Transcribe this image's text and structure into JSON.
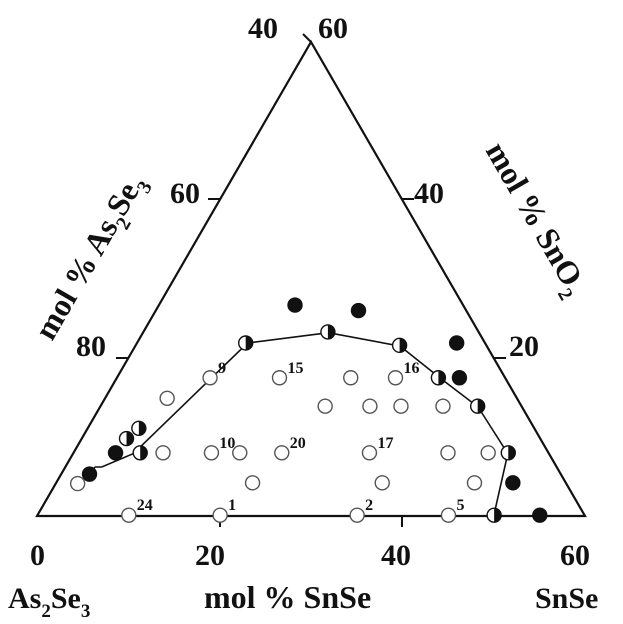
{
  "figure": {
    "corner_left": {
      "main": "As",
      "sub1": "2",
      "mid": "Se",
      "sub2": "3"
    },
    "corner_right": "SnSe",
    "bottom_title": "mol % SnSe",
    "left_title": {
      "main": "mol % As",
      "sub1": "2",
      "mid": "Se",
      "sub2": "3"
    },
    "right_title": {
      "main": "mol % SnO",
      "sub1": "2"
    },
    "bottom_ticks": [
      "0",
      "20",
      "40",
      "60"
    ],
    "left_ticks": [
      "60",
      "80"
    ],
    "right_ticks": [
      "40",
      "20"
    ],
    "apex_left": "40",
    "apex_right": "60",
    "point_labels": [
      "9",
      "15",
      "16",
      "10",
      "20",
      "17",
      "24",
      "1",
      "2",
      "5"
    ]
  },
  "chart_data": {
    "type": "scatter",
    "coordinate_system": "ternary (mol % SnSe along base, mol % SnO2 as height; base range 0-60, apex at SnO2 = 60)",
    "ranges": {
      "SnSe": [
        0,
        60
      ],
      "SnO2": [
        0,
        60
      ],
      "As2Se3": [
        40,
        100
      ]
    },
    "legend_note": "marker fill: filled, half-filled, open",
    "boundary_line": [
      [
        50,
        0
      ],
      [
        47.6,
        7.9
      ],
      [
        41.4,
        13.8
      ],
      [
        35.5,
        17.4
      ],
      [
        29,
        21.5
      ],
      [
        20.3,
        23.2
      ],
      [
        12.1,
        21.9
      ],
      [
        6.6,
        7.9
      ],
      [
        4,
        6.2
      ],
      [
        3.3,
        6.2
      ],
      [
        2.5,
        5.2
      ]
    ],
    "points": [
      {
        "snse": 14.9,
        "sno2": 26.7,
        "type": "filled"
      },
      {
        "snse": 22.2,
        "sno2": 26.0,
        "type": "filled"
      },
      {
        "snse": 11.9,
        "sno2": 21.9,
        "type": "half"
      },
      {
        "snse": 20.2,
        "sno2": 23.3,
        "type": "half"
      },
      {
        "snse": 28.9,
        "sno2": 21.6,
        "type": "half"
      },
      {
        "snse": 35.0,
        "sno2": 21.9,
        "type": "filled"
      },
      {
        "snse": 37.5,
        "sno2": 17.5,
        "type": "filled"
      },
      {
        "snse": 35.2,
        "sno2": 17.5,
        "type": "half"
      },
      {
        "snse": 41.3,
        "sno2": 13.9,
        "type": "half"
      },
      {
        "snse": 47.6,
        "sno2": 8.0,
        "type": "half"
      },
      {
        "snse": 50.0,
        "sno2": 4.2,
        "type": "filled"
      },
      {
        "snse": 50.0,
        "sno2": 0.1,
        "type": "half"
      },
      {
        "snse": 55.0,
        "sno2": 0.1,
        "type": "filled"
      },
      {
        "snse": 6.8,
        "sno2": 14.9,
        "type": "open"
      },
      {
        "snse": 5.6,
        "sno2": 11.1,
        "type": "half"
      },
      {
        "snse": 4.9,
        "sno2": 9.8,
        "type": "half"
      },
      {
        "snse": 4.6,
        "sno2": 8.0,
        "type": "filled"
      },
      {
        "snse": 7.3,
        "sno2": 8.0,
        "type": "half"
      },
      {
        "snse": 3.1,
        "sno2": 5.3,
        "type": "filled"
      },
      {
        "snse": 2.4,
        "sno2": 4.1,
        "type": "open"
      },
      {
        "snse": 10.2,
        "sno2": 17.5,
        "type": "open",
        "label": "9"
      },
      {
        "snse": 17.8,
        "sno2": 17.5,
        "type": "open",
        "label": "15"
      },
      {
        "snse": 25.6,
        "sno2": 17.5,
        "type": "open"
      },
      {
        "snse": 30.5,
        "sno2": 17.5,
        "type": "open",
        "label": "16"
      },
      {
        "snse": 24.6,
        "sno2": 13.9,
        "type": "open"
      },
      {
        "snse": 29.5,
        "sno2": 13.9,
        "type": "open"
      },
      {
        "snse": 32.9,
        "sno2": 13.9,
        "type": "open"
      },
      {
        "snse": 37.5,
        "sno2": 13.9,
        "type": "open"
      },
      {
        "snse": 9.8,
        "sno2": 8.0,
        "type": "open"
      },
      {
        "snse": 15.1,
        "sno2": 8.0,
        "type": "open",
        "label": "10"
      },
      {
        "snse": 18.2,
        "sno2": 8.0,
        "type": "open"
      },
      {
        "snse": 22.8,
        "sno2": 8.0,
        "type": "open",
        "label": "20"
      },
      {
        "snse": 32.4,
        "sno2": 8.0,
        "type": "open",
        "label": "17"
      },
      {
        "snse": 41.0,
        "sno2": 8.0,
        "type": "open"
      },
      {
        "snse": 45.4,
        "sno2": 8.0,
        "type": "open"
      },
      {
        "snse": 21.5,
        "sno2": 4.2,
        "type": "open"
      },
      {
        "snse": 35.7,
        "sno2": 4.2,
        "type": "open"
      },
      {
        "snse": 45.8,
        "sno2": 4.2,
        "type": "open"
      },
      {
        "snse": 10.0,
        "sno2": 0.1,
        "type": "open",
        "label": "24"
      },
      {
        "snse": 20.0,
        "sno2": 0.1,
        "type": "open",
        "label": "1"
      },
      {
        "snse": 35.0,
        "sno2": 0.1,
        "type": "open",
        "label": "2"
      },
      {
        "snse": 45.0,
        "sno2": 0.1,
        "type": "open",
        "label": "5"
      }
    ]
  }
}
